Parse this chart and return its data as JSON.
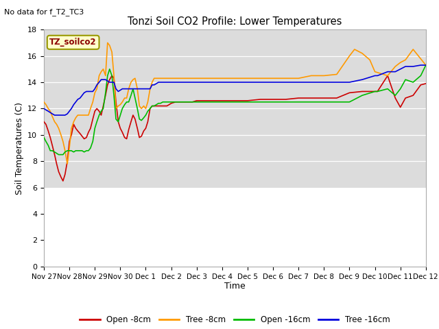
{
  "title": "Tonzi Soil CO2 Profile: Lower Temperatures",
  "subtitle": "No data for f_T2_TC3",
  "ylabel": "Soil Temperatures (C)",
  "xlabel": "Time",
  "box_label": "TZ_soilco2",
  "ylim": [
    0,
    18
  ],
  "yticks": [
    0,
    2,
    4,
    6,
    8,
    10,
    12,
    14,
    16,
    18
  ],
  "bg_color_upper": "#dcdcdc",
  "bg_color_lower": "#ffffff",
  "gray_band_ymin": 6.0,
  "legend_entries": [
    "Open -8cm",
    "Tree -8cm",
    "Open -16cm",
    "Tree -16cm"
  ],
  "legend_colors": [
    "#cc0000",
    "#ff9900",
    "#00bb00",
    "#0000dd"
  ],
  "xtick_positions": [
    0,
    1,
    2,
    3,
    4,
    5,
    6,
    7,
    8,
    9,
    10,
    11,
    12,
    13,
    14,
    15
  ],
  "xtick_labels": [
    "Nov 27",
    "Nov 28",
    "Nov 29",
    "Nov 30",
    "Dec 1",
    "Dec 2",
    "Dec 3",
    "Dec 4",
    "Dec 5",
    "Dec 6",
    "Dec 7",
    "Dec 8",
    "Dec 9",
    "Dec 10",
    "Dec 11",
    "Dec 12"
  ],
  "series": {
    "open_8cm": {
      "color": "#cc0000",
      "x": [
        0.0,
        0.08,
        0.17,
        0.25,
        0.33,
        0.42,
        0.5,
        0.58,
        0.67,
        0.75,
        0.83,
        0.92,
        1.0,
        1.08,
        1.17,
        1.25,
        1.33,
        1.42,
        1.5,
        1.58,
        1.67,
        1.75,
        1.83,
        1.92,
        2.0,
        2.08,
        2.17,
        2.25,
        2.33,
        2.42,
        2.5,
        2.58,
        2.67,
        2.75,
        2.83,
        2.92,
        3.0,
        3.08,
        3.17,
        3.25,
        3.33,
        3.42,
        3.5,
        3.58,
        3.67,
        3.75,
        3.83,
        3.92,
        4.0,
        4.08,
        4.17,
        4.25,
        4.33,
        4.42,
        4.5,
        4.58,
        4.67,
        4.75,
        4.83,
        4.92,
        5.0,
        5.17,
        5.33,
        5.5,
        5.67,
        5.83,
        6.0,
        6.5,
        7.0,
        7.5,
        8.0,
        8.5,
        9.0,
        9.5,
        10.0,
        10.5,
        11.0,
        11.5,
        12.0,
        12.5,
        13.0,
        13.1,
        13.5,
        13.8,
        14.0,
        14.2,
        14.5,
        14.8,
        15.0
      ],
      "y": [
        11.0,
        10.8,
        10.3,
        9.8,
        9.2,
        8.5,
        7.8,
        7.2,
        6.8,
        6.5,
        7.0,
        8.0,
        9.5,
        10.0,
        10.8,
        10.5,
        10.3,
        10.1,
        9.9,
        9.7,
        9.8,
        10.2,
        10.5,
        11.2,
        11.8,
        12.0,
        11.8,
        11.5,
        12.2,
        13.0,
        13.8,
        14.2,
        14.5,
        14.3,
        12.5,
        11.0,
        10.5,
        10.2,
        9.8,
        9.7,
        10.4,
        11.0,
        11.5,
        11.2,
        10.5,
        9.8,
        9.9,
        10.3,
        10.5,
        11.0,
        12.0,
        12.2,
        12.2,
        12.2,
        12.2,
        12.2,
        12.2,
        12.2,
        12.2,
        12.3,
        12.4,
        12.5,
        12.5,
        12.5,
        12.5,
        12.5,
        12.6,
        12.6,
        12.6,
        12.6,
        12.6,
        12.7,
        12.7,
        12.7,
        12.8,
        12.8,
        12.8,
        12.8,
        13.2,
        13.3,
        13.3,
        13.3,
        14.5,
        12.8,
        12.1,
        12.8,
        13.0,
        13.8,
        13.9
      ]
    },
    "tree_8cm": {
      "color": "#ff9900",
      "x": [
        0.0,
        0.08,
        0.17,
        0.25,
        0.33,
        0.42,
        0.5,
        0.58,
        0.67,
        0.75,
        0.83,
        0.92,
        1.0,
        1.08,
        1.17,
        1.25,
        1.33,
        1.42,
        1.5,
        1.58,
        1.67,
        1.75,
        1.83,
        1.92,
        2.0,
        2.08,
        2.17,
        2.25,
        2.33,
        2.42,
        2.5,
        2.58,
        2.67,
        2.75,
        2.83,
        2.92,
        3.0,
        3.08,
        3.17,
        3.25,
        3.33,
        3.42,
        3.5,
        3.58,
        3.67,
        3.75,
        3.83,
        3.92,
        4.0,
        4.08,
        4.17,
        4.25,
        4.33,
        4.42,
        4.5,
        4.58,
        4.67,
        4.75,
        4.83,
        4.92,
        5.0,
        5.17,
        5.33,
        5.5,
        5.67,
        5.83,
        6.0,
        6.5,
        7.0,
        7.5,
        8.0,
        8.5,
        9.0,
        9.5,
        10.0,
        10.5,
        11.0,
        11.5,
        12.0,
        12.2,
        12.5,
        12.8,
        13.0,
        13.5,
        13.8,
        14.0,
        14.2,
        14.5,
        15.0
      ],
      "y": [
        12.5,
        12.3,
        12.0,
        11.8,
        11.4,
        11.0,
        10.8,
        10.5,
        10.0,
        9.5,
        8.8,
        7.8,
        9.0,
        10.5,
        11.0,
        11.3,
        11.5,
        11.5,
        11.5,
        11.5,
        11.5,
        11.5,
        12.0,
        12.5,
        13.2,
        13.5,
        14.5,
        14.8,
        15.0,
        14.5,
        17.0,
        16.8,
        16.3,
        14.5,
        12.0,
        12.2,
        12.3,
        12.5,
        12.8,
        12.8,
        13.5,
        14.0,
        14.2,
        14.3,
        13.5,
        12.2,
        12.0,
        12.2,
        12.0,
        12.5,
        13.5,
        14.0,
        14.3,
        14.3,
        14.3,
        14.3,
        14.3,
        14.3,
        14.3,
        14.3,
        14.3,
        14.3,
        14.3,
        14.3,
        14.3,
        14.3,
        14.3,
        14.3,
        14.3,
        14.3,
        14.3,
        14.3,
        14.3,
        14.3,
        14.3,
        14.5,
        14.5,
        14.6,
        16.0,
        16.5,
        16.2,
        15.7,
        14.8,
        14.5,
        15.2,
        15.5,
        15.7,
        16.5,
        15.3
      ]
    },
    "open_16cm": {
      "color": "#00bb00",
      "x": [
        0.0,
        0.08,
        0.17,
        0.25,
        0.33,
        0.42,
        0.5,
        0.58,
        0.67,
        0.75,
        0.83,
        0.92,
        1.0,
        1.08,
        1.17,
        1.25,
        1.33,
        1.42,
        1.5,
        1.58,
        1.67,
        1.75,
        1.83,
        1.92,
        2.0,
        2.08,
        2.17,
        2.25,
        2.33,
        2.42,
        2.5,
        2.58,
        2.67,
        2.75,
        2.83,
        2.92,
        3.0,
        3.08,
        3.17,
        3.25,
        3.33,
        3.42,
        3.5,
        3.58,
        3.67,
        3.75,
        3.83,
        3.92,
        4.0,
        4.08,
        4.17,
        4.25,
        4.33,
        4.42,
        4.5,
        4.58,
        4.67,
        4.75,
        4.83,
        4.92,
        5.0,
        5.17,
        5.33,
        5.5,
        5.67,
        5.83,
        6.0,
        6.5,
        7.0,
        7.5,
        8.0,
        8.5,
        9.0,
        9.5,
        10.0,
        10.5,
        11.0,
        11.5,
        12.0,
        12.5,
        13.0,
        13.1,
        13.5,
        13.8,
        14.0,
        14.2,
        14.5,
        14.8,
        15.0
      ],
      "y": [
        9.8,
        9.5,
        9.2,
        8.8,
        8.8,
        8.7,
        8.6,
        8.5,
        8.5,
        8.5,
        8.7,
        8.8,
        8.8,
        8.8,
        8.7,
        8.8,
        8.8,
        8.8,
        8.8,
        8.7,
        8.8,
        8.8,
        9.0,
        9.5,
        10.5,
        11.0,
        11.5,
        11.8,
        12.0,
        13.2,
        14.5,
        15.0,
        14.5,
        13.0,
        11.2,
        11.0,
        11.5,
        12.0,
        12.3,
        12.5,
        12.5,
        13.0,
        13.5,
        12.8,
        12.0,
        11.2,
        11.1,
        11.3,
        11.5,
        11.8,
        12.0,
        12.2,
        12.2,
        12.3,
        12.4,
        12.4,
        12.5,
        12.5,
        12.5,
        12.5,
        12.5,
        12.5,
        12.5,
        12.5,
        12.5,
        12.5,
        12.5,
        12.5,
        12.5,
        12.5,
        12.5,
        12.5,
        12.5,
        12.5,
        12.5,
        12.5,
        12.5,
        12.5,
        12.5,
        13.0,
        13.3,
        13.3,
        13.5,
        13.0,
        13.5,
        14.2,
        14.0,
        14.5,
        15.3
      ]
    },
    "tree_16cm": {
      "color": "#0000dd",
      "x": [
        0.0,
        0.08,
        0.17,
        0.25,
        0.33,
        0.42,
        0.5,
        0.58,
        0.67,
        0.75,
        0.83,
        0.92,
        1.0,
        1.08,
        1.17,
        1.25,
        1.33,
        1.42,
        1.5,
        1.58,
        1.67,
        1.75,
        1.83,
        1.92,
        2.0,
        2.08,
        2.17,
        2.25,
        2.33,
        2.42,
        2.5,
        2.58,
        2.67,
        2.75,
        2.83,
        2.92,
        3.0,
        3.08,
        3.17,
        3.25,
        3.33,
        3.42,
        3.5,
        3.58,
        3.67,
        3.75,
        3.83,
        3.92,
        4.0,
        4.08,
        4.17,
        4.25,
        4.33,
        4.42,
        4.5,
        4.58,
        4.67,
        4.75,
        4.83,
        4.92,
        5.0,
        5.17,
        5.33,
        5.5,
        5.67,
        5.83,
        6.0,
        6.5,
        7.0,
        7.5,
        8.0,
        8.5,
        9.0,
        9.5,
        10.0,
        10.5,
        11.0,
        11.5,
        12.0,
        12.5,
        13.0,
        13.1,
        13.5,
        13.8,
        14.0,
        14.2,
        14.5,
        14.8,
        15.0
      ],
      "y": [
        12.0,
        11.9,
        11.8,
        11.7,
        11.6,
        11.5,
        11.5,
        11.5,
        11.5,
        11.5,
        11.5,
        11.6,
        11.8,
        12.0,
        12.3,
        12.5,
        12.7,
        12.8,
        13.0,
        13.2,
        13.3,
        13.3,
        13.3,
        13.3,
        13.5,
        13.8,
        14.0,
        14.2,
        14.2,
        14.2,
        14.1,
        14.0,
        14.0,
        14.0,
        13.5,
        13.3,
        13.4,
        13.5,
        13.5,
        13.5,
        13.5,
        13.5,
        13.5,
        13.5,
        13.5,
        13.5,
        13.5,
        13.5,
        13.5,
        13.5,
        13.5,
        13.8,
        13.8,
        13.9,
        14.0,
        14.0,
        14.0,
        14.0,
        14.0,
        14.0,
        14.0,
        14.0,
        14.0,
        14.0,
        14.0,
        14.0,
        14.0,
        14.0,
        14.0,
        14.0,
        14.0,
        14.0,
        14.0,
        14.0,
        14.0,
        14.0,
        14.0,
        14.0,
        14.0,
        14.2,
        14.5,
        14.5,
        14.8,
        14.8,
        15.0,
        15.2,
        15.2,
        15.3,
        15.3
      ]
    }
  }
}
